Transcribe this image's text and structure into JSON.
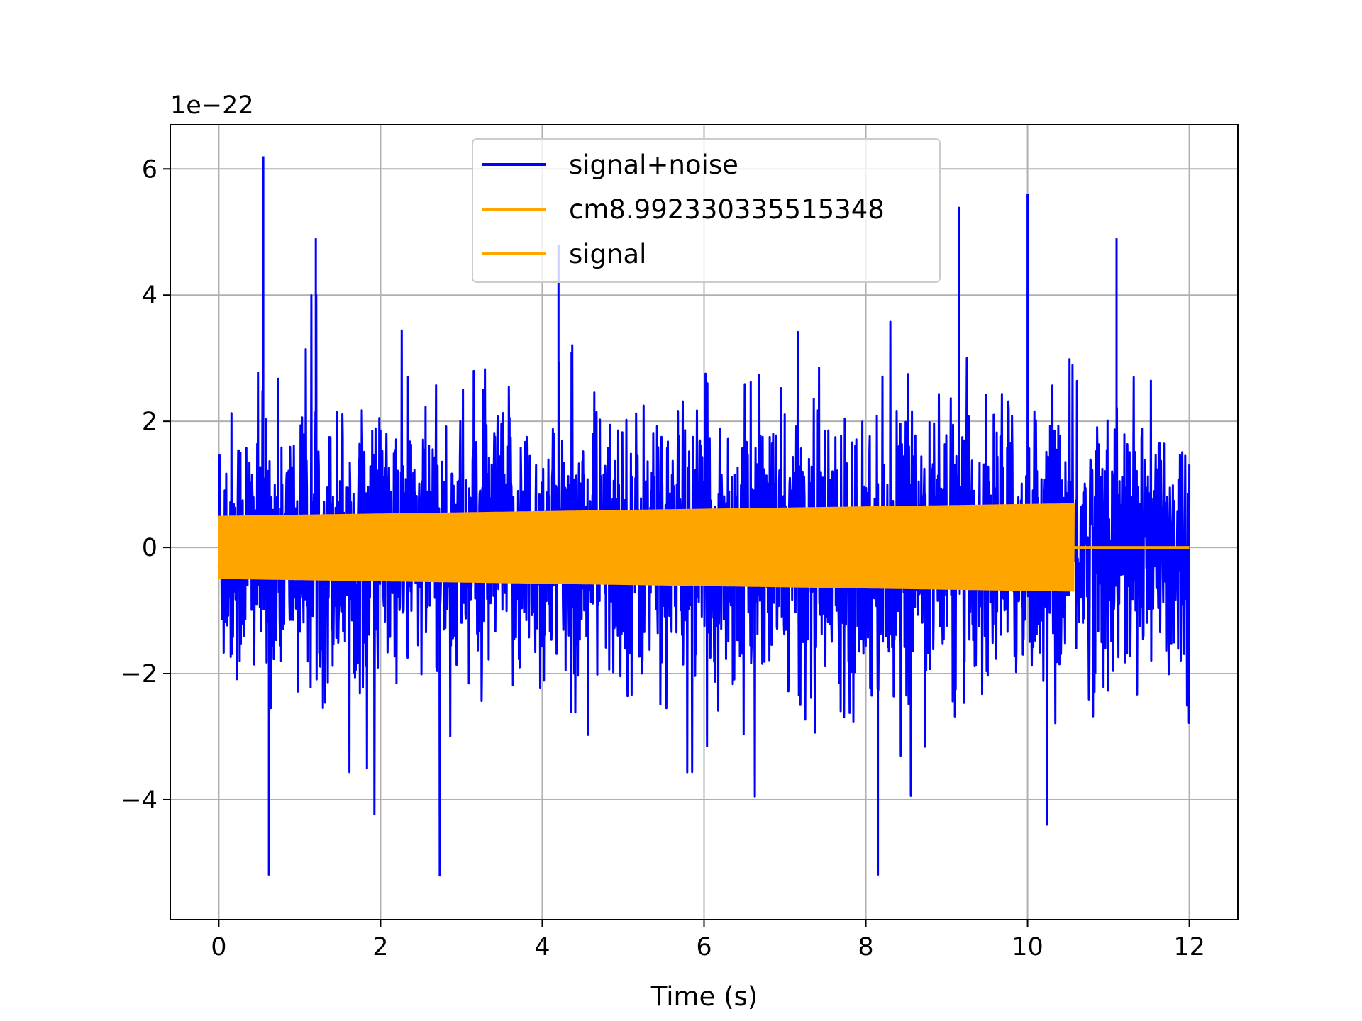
{
  "chart_data": {
    "type": "line",
    "title": "",
    "xlabel": "Time (s)",
    "ylabel": "",
    "y_offset_label": "1e−22",
    "xlim": [
      -0.6,
      12.6
    ],
    "ylim": [
      -5.9,
      6.7
    ],
    "x_ticks": [
      0,
      2,
      4,
      6,
      8,
      10,
      12
    ],
    "x_tick_labels": [
      "0",
      "2",
      "4",
      "6",
      "8",
      "10",
      "12"
    ],
    "y_ticks": [
      -4,
      -2,
      0,
      2,
      4,
      6
    ],
    "y_tick_labels": [
      "−4",
      "−2",
      "0",
      "2",
      "4",
      "6"
    ],
    "grid": true,
    "legend_position": "upper center",
    "series": [
      {
        "name": "signal+noise",
        "color": "#0000ff",
        "x_range": [
          0,
          12
        ],
        "envelope_typical": [
          -2.0,
          2.0
        ],
        "max": 6.2,
        "min": -5.2,
        "notable_peaks": [
          {
            "x": 0.55,
            "y": 6.2
          },
          {
            "x": 0.62,
            "y": -5.2
          },
          {
            "x": 1.2,
            "y": 4.9
          },
          {
            "x": 4.2,
            "y": 4.8
          },
          {
            "x": 8.15,
            "y": -5.2
          },
          {
            "x": 9.15,
            "y": 5.4
          },
          {
            "x": 10.0,
            "y": 5.6
          },
          {
            "x": 11.1,
            "y": 4.9
          }
        ]
      },
      {
        "name": "cm8.992330335515348",
        "color": "#ffa500",
        "x_range": [
          0,
          10.57
        ],
        "amplitude_start": 0.5,
        "amplitude_end": 0.7
      },
      {
        "name": "signal",
        "color": "#ffa500",
        "x_range": [
          0,
          12
        ],
        "note": "zero after 10.57 s"
      }
    ]
  }
}
